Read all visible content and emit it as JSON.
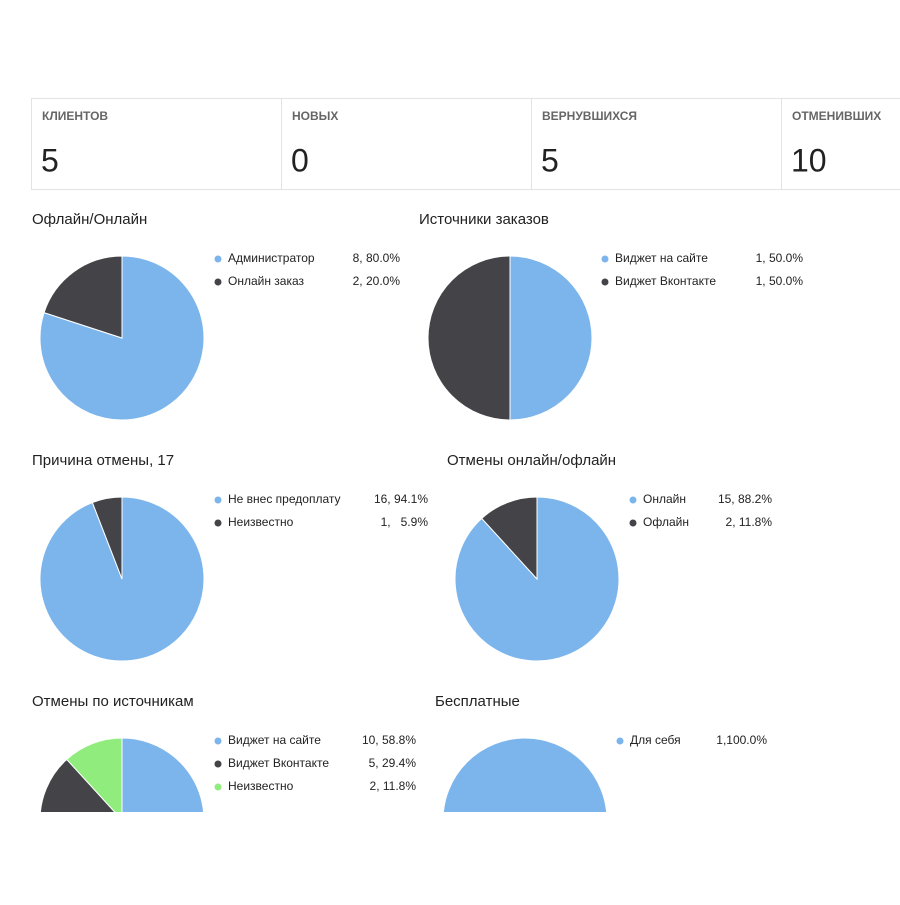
{
  "stats": [
    {
      "label": "КЛИЕНТОВ",
      "value": 5
    },
    {
      "label": "НОВЫХ",
      "value": 0
    },
    {
      "label": "ВЕРНУВШИХСЯ",
      "value": 5
    },
    {
      "label": "ОТМЕНИВШИХ",
      "value": 10
    }
  ],
  "chart_data": [
    {
      "type": "pie",
      "title": "Офлайн/Онлайн",
      "categories": [
        "Администратор",
        "Онлайн заказ"
      ],
      "values": [
        8,
        2
      ],
      "value_labels": [
        "8, 80.0%",
        "2, 20.0%"
      ],
      "colors": [
        "#7cb5ec",
        "#434348"
      ]
    },
    {
      "type": "pie",
      "title": "Источники заказов",
      "categories": [
        "Виджет на сайте",
        "Виджет Вконтакте"
      ],
      "values": [
        1,
        1
      ],
      "value_labels": [
        "1, 50.0%",
        "1, 50.0%"
      ],
      "colors": [
        "#7cb5ec",
        "#434348"
      ]
    },
    {
      "type": "pie",
      "title": "Причина отмены, 17",
      "categories": [
        "Не внес предоплату",
        "Неизвестно"
      ],
      "values": [
        16,
        1
      ],
      "value_labels": [
        "16, 94.1%",
        "1,   5.9%"
      ],
      "colors": [
        "#7cb5ec",
        "#434348"
      ]
    },
    {
      "type": "pie",
      "title": "Отмены онлайн/офлайн",
      "categories": [
        "Онлайн",
        "Офлайн"
      ],
      "values": [
        15,
        2
      ],
      "value_labels": [
        "15, 88.2%",
        "2, 11.8%"
      ],
      "colors": [
        "#7cb5ec",
        "#434348"
      ]
    },
    {
      "type": "pie",
      "title": "Отмены по источникам",
      "categories": [
        "Виджет на сайте",
        "Виджет Вконтакте",
        "Неизвестно"
      ],
      "values": [
        10,
        5,
        2
      ],
      "value_labels": [
        "10, 58.8%",
        "5, 29.4%",
        "2, 11.8%"
      ],
      "colors": [
        "#7cb5ec",
        "#434348",
        "#90ed7d"
      ]
    },
    {
      "type": "pie",
      "title": "Бесплатные",
      "categories": [
        "Для себя"
      ],
      "values": [
        1
      ],
      "value_labels": [
        "1,100.0%"
      ],
      "colors": [
        "#7cb5ec"
      ]
    }
  ]
}
